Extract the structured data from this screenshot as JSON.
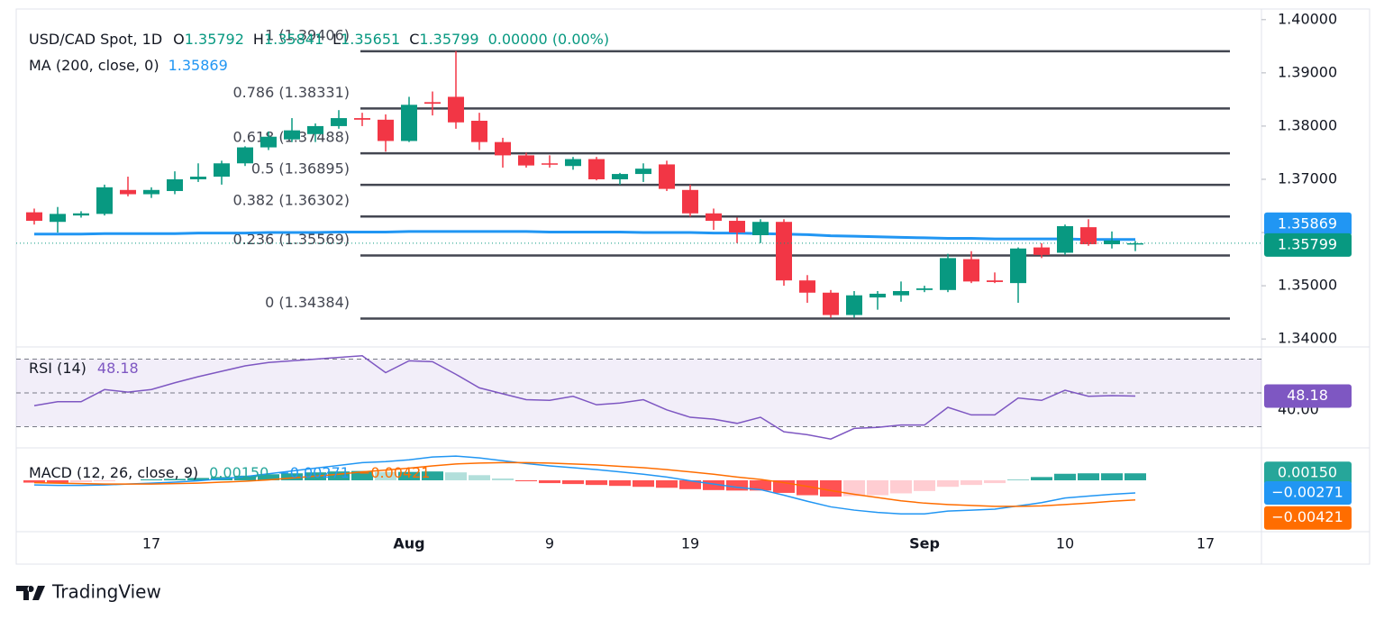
{
  "chart_data": [
    {
      "type": "candlestick",
      "title": "USD/CAD Spot, 1D",
      "ohlc_labels": [
        "O",
        "H",
        "L",
        "C"
      ],
      "change": "0.00000 (0.00%)",
      "categories": [
        null,
        null,
        null,
        null,
        null,
        "17",
        null,
        null,
        null,
        null,
        null,
        null,
        null,
        null,
        null,
        null,
        "Aug",
        null,
        null,
        null,
        null,
        null,
        "9",
        null,
        null,
        null,
        null,
        null,
        "19",
        null,
        null,
        null,
        null,
        null,
        null,
        null,
        null,
        null,
        "Sep",
        null,
        null,
        null,
        null,
        null,
        "10",
        null,
        null,
        null,
        null,
        null,
        "17"
      ],
      "open": [
        1.3638,
        1.362,
        1.3632,
        1.3635,
        1.368,
        1.3672,
        1.3678,
        1.37,
        1.3705,
        1.373,
        1.376,
        1.3775,
        1.3785,
        1.38,
        1.3815,
        1.3812,
        1.3772,
        1.3845,
        1.3855,
        1.381,
        1.377,
        1.3745,
        1.373,
        1.3725,
        1.3738,
        1.37,
        1.371,
        1.3728,
        1.368,
        1.3636,
        1.3622,
        1.3595,
        1.362,
        1.351,
        1.3487,
        1.3445,
        1.3478,
        1.3482,
        1.3492,
        1.3492,
        1.355,
        1.351,
        1.3505,
        1.3572,
        1.3562,
        1.361,
        1.3578,
        1.35792,
        null,
        null,
        null
      ],
      "high": [
        1.3645,
        1.3648,
        1.364,
        1.369,
        1.3705,
        1.3685,
        1.3715,
        1.373,
        1.3735,
        1.3762,
        1.379,
        1.3815,
        1.3805,
        1.383,
        1.3825,
        1.3822,
        1.3855,
        1.3865,
        1.3941,
        1.3825,
        1.3778,
        1.375,
        1.3745,
        1.3742,
        1.3742,
        1.3712,
        1.373,
        1.3735,
        1.369,
        1.3645,
        1.3628,
        1.3625,
        1.3625,
        1.352,
        1.3492,
        1.349,
        1.349,
        1.3508,
        1.35,
        1.356,
        1.3565,
        1.3525,
        1.3572,
        1.358,
        1.3615,
        1.3625,
        1.3602,
        1.35841,
        null,
        null,
        null
      ],
      "low": [
        1.3615,
        1.36,
        1.3628,
        1.3632,
        1.3668,
        1.3665,
        1.3672,
        1.3695,
        1.369,
        1.3725,
        1.3755,
        1.377,
        1.377,
        1.3795,
        1.38,
        1.3752,
        1.377,
        1.382,
        1.3795,
        1.3755,
        1.3722,
        1.3722,
        1.3722,
        1.3718,
        1.3698,
        1.369,
        1.3695,
        1.3678,
        1.363,
        1.3605,
        1.358,
        1.358,
        1.35,
        1.3468,
        1.344,
        1.344,
        1.3455,
        1.347,
        1.3488,
        1.3488,
        1.3505,
        1.3505,
        1.3468,
        1.3552,
        1.3558,
        1.3575,
        1.357,
        1.35651,
        null,
        null,
        null
      ],
      "close": [
        1.3622,
        1.3635,
        1.3636,
        1.3685,
        1.3672,
        1.368,
        1.37,
        1.3705,
        1.373,
        1.376,
        1.378,
        1.3792,
        1.38,
        1.3815,
        1.3812,
        1.3772,
        1.384,
        1.3842,
        1.3807,
        1.377,
        1.3745,
        1.3726,
        1.3728,
        1.3738,
        1.37,
        1.371,
        1.372,
        1.3682,
        1.3636,
        1.3622,
        1.36,
        1.362,
        1.351,
        1.3487,
        1.3445,
        1.3482,
        1.3485,
        1.349,
        1.3495,
        1.3552,
        1.3508,
        1.3507,
        1.357,
        1.3558,
        1.3612,
        1.3578,
        1.3585,
        1.35799,
        null,
        null,
        null
      ],
      "up_color": "#089981",
      "down_color": "#f23645",
      "ylim": [
        1.3385,
        1.402
      ],
      "yticks": [
        {
          "value": 1.34,
          "label": "1.34000"
        },
        {
          "value": 1.35,
          "label": "1.35000"
        },
        {
          "value": 1.36,
          "label": "1.36000"
        },
        {
          "value": 1.37,
          "label": "1.37000"
        },
        {
          "value": 1.38,
          "label": "1.38000"
        },
        {
          "value": 1.39,
          "label": "1.39000"
        },
        {
          "value": 1.4,
          "label": "1.40000"
        }
      ],
      "ma": {
        "name": "MA (200, close, 0)",
        "color": "#2196f3",
        "values": [
          1.3597,
          1.3597,
          1.3597,
          1.3598,
          1.3598,
          1.3598,
          1.3598,
          1.3599,
          1.3599,
          1.3599,
          1.36,
          1.36,
          1.36,
          1.3601,
          1.3601,
          1.3601,
          1.3602,
          1.3602,
          1.3602,
          1.3602,
          1.3602,
          1.3602,
          1.3601,
          1.3601,
          1.3601,
          1.3601,
          1.36,
          1.36,
          1.36,
          1.3599,
          1.3599,
          1.3598,
          1.3597,
          1.3596,
          1.3594,
          1.3593,
          1.3592,
          1.3591,
          1.359,
          1.3589,
          1.3589,
          1.3588,
          1.3588,
          1.3588,
          1.3588,
          1.3587,
          1.3587,
          1.35869,
          null,
          null,
          null
        ]
      },
      "fib_color": "#434651",
      "fib": [
        {
          "label": "1 (1.39406)",
          "value": 1.39406
        },
        {
          "label": "0.786 (1.38331)",
          "value": 1.38331
        },
        {
          "label": "0.618 (1.37488)",
          "value": 1.37488
        },
        {
          "label": "0.5 (1.36895)",
          "value": 1.36895
        },
        {
          "label": "0.382 (1.36302)",
          "value": 1.36302
        },
        {
          "label": "0.236 (1.35569)",
          "value": 1.35569
        },
        {
          "label": "0 (1.34384)",
          "value": 1.34384
        }
      ]
    },
    {
      "type": "line",
      "title": "RSI (14)",
      "color": "#7e57c2",
      "values": [
        42.5,
        44.8,
        44.8,
        52,
        50.5,
        52,
        56,
        59.6,
        62.8,
        66,
        68,
        69,
        70,
        71,
        72,
        62,
        69,
        68.5,
        61,
        53,
        49.5,
        46,
        45.6,
        48,
        43,
        44,
        46,
        40,
        35.6,
        34.5,
        32,
        35.6,
        27,
        25.3,
        22.7,
        29,
        29.6,
        31,
        31,
        41.5,
        37,
        37,
        47,
        45.6,
        51.6,
        48,
        48.4,
        48.18,
        null,
        null,
        null
      ],
      "ylim": [
        17.5,
        77.2
      ],
      "yticks": [
        {
          "value": 40,
          "label": "40.00"
        }
      ],
      "levels": [
        70,
        50,
        30
      ]
    },
    {
      "type": "macd",
      "title": "MACD (12, 26, close, 9)",
      "histogram": {
        "up_color": "#26a69a",
        "up_fade": "#b2dfdb",
        "down_color": "#ff5252",
        "down_fade": "#ffcdd2",
        "value_label": "0.00150",
        "values": [
          -0.0005,
          -0.0005,
          -0.0004,
          -0.0002,
          0,
          0.0002,
          0.0003,
          0.0005,
          0.0007,
          0.001,
          0.0013,
          0.0015,
          0.0017,
          0.0019,
          0.002,
          0.0018,
          0.0018,
          0.0019,
          0.0017,
          0.0011,
          0.0004,
          -0.0002,
          -0.0006,
          -0.0008,
          -0.001,
          -0.0012,
          -0.0014,
          -0.0016,
          -0.0019,
          -0.0021,
          -0.0022,
          -0.0022,
          -0.0027,
          -0.0032,
          -0.0035,
          -0.0034,
          -0.0032,
          -0.0028,
          -0.0023,
          -0.0014,
          -0.001,
          -0.0006,
          0.0001,
          0.0007,
          0.0014,
          0.0015,
          0.0015,
          0.0015,
          null,
          null,
          null
        ]
      },
      "series": [
        {
          "color": "#2196f3",
          "value_label": "−0.00271",
          "values": [
            -0.001,
            -0.0011,
            -0.0011,
            -0.001,
            -0.0008,
            -0.0006,
            -0.0004,
            -0.0001,
            0.0003,
            0.0008,
            0.0014,
            0.002,
            0.0026,
            0.0032,
            0.0038,
            0.004,
            0.0044,
            0.005,
            0.0052,
            0.0048,
            0.0042,
            0.0036,
            0.0031,
            0.0027,
            0.0023,
            0.0018,
            0.0013,
            0.0007,
            -0.0001,
            -0.0008,
            -0.0015,
            -0.002,
            -0.0032,
            -0.0045,
            -0.0057,
            -0.0064,
            -0.0069,
            -0.0072,
            -0.0072,
            -0.0066,
            -0.0064,
            -0.0062,
            -0.0055,
            -0.0048,
            -0.0038,
            -0.0034,
            -0.003,
            -0.00271,
            null,
            null,
            null
          ]
        },
        {
          "color": "#ff6d00",
          "value_label": "−0.00421",
          "values": [
            -0.0005,
            -0.0006,
            -0.0007,
            -0.0008,
            -0.0008,
            -0.0008,
            -0.0007,
            -0.0006,
            -0.0004,
            -0.0002,
            0.0001,
            0.0005,
            0.0009,
            0.0013,
            0.0018,
            0.0022,
            0.0026,
            0.0031,
            0.0035,
            0.0037,
            0.0038,
            0.0038,
            0.0037,
            0.0035,
            0.0033,
            0.003,
            0.0027,
            0.0023,
            0.0018,
            0.0013,
            0.0007,
            0.0002,
            -0.0005,
            -0.0013,
            -0.0022,
            -0.003,
            -0.0037,
            -0.0044,
            -0.0049,
            -0.0052,
            -0.0054,
            -0.0056,
            -0.0056,
            -0.0055,
            -0.0052,
            -0.0049,
            -0.0045,
            -0.00421,
            null,
            null,
            null
          ]
        }
      ],
      "ylim": [
        -0.01103,
        0.00696
      ]
    }
  ],
  "footer": {
    "brand": "TradingView"
  }
}
